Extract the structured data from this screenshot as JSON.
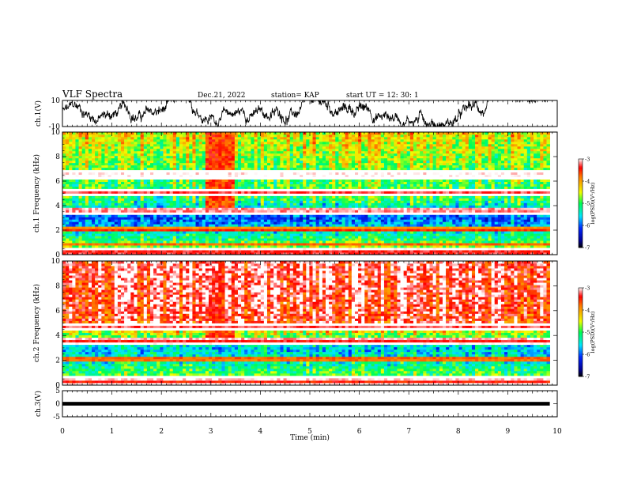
{
  "header": {
    "title": "VLF Spectra",
    "date": "Dec.21, 2022",
    "station": "station= KAP",
    "start": "start  UT =   12: 30: 1"
  },
  "chart_data": [
    {
      "type": "line",
      "panel": "ch1-waveform",
      "ylabel": "ch.1(V)",
      "ylim": [
        -10,
        10
      ],
      "yticks": [
        {
          "value": 10,
          "label": "10"
        },
        {
          "value": -10,
          "label": "-10"
        }
      ],
      "xlim": [
        0,
        10
      ],
      "x_end_data": 9.85,
      "series": [
        {
          "values_range": [
            -5,
            5
          ]
        }
      ]
    },
    {
      "type": "heatmap",
      "panel": "ch1-spectrogram",
      "ylabel": "ch.1 Frequency (kHz)",
      "ylim": [
        0,
        10
      ],
      "yticks": [
        "0",
        "2",
        "4",
        "6",
        "8",
        "10"
      ],
      "xlim": [
        0,
        10
      ],
      "x_end_data": 9.85,
      "colorbar": {
        "label": "log(PSD)(V²/Hz)",
        "range": [
          -7,
          -3
        ],
        "ticks": [
          "-3",
          "-4",
          "-5",
          "-6",
          "-7"
        ]
      },
      "bands": [
        {
          "f": 6.55,
          "w": 0.22,
          "c": -3.2
        },
        {
          "f": 5.1,
          "w": 0.2,
          "c": -3.3
        },
        {
          "f": 3.65,
          "w": 0.18,
          "c": -3.4
        },
        {
          "f": 2.2,
          "w": 0.12,
          "c": -4.0
        },
        {
          "f": 0.85,
          "w": 0.1,
          "c": -3.8
        },
        {
          "f": 0.2,
          "w": 0.25,
          "c": -3.6
        }
      ],
      "background_level": [
        {
          "f": 0,
          "c": -4.2
        },
        {
          "f": 1.5,
          "c": -5.2
        },
        {
          "f": 3.0,
          "c": -6.0
        },
        {
          "f": 4.5,
          "c": -5.0
        },
        {
          "f": 7.0,
          "c": -4.8
        },
        {
          "f": 10,
          "c": -4.3
        }
      ],
      "event": {
        "t_start": 2.9,
        "t_end": 3.5
      }
    },
    {
      "type": "heatmap",
      "panel": "ch2-spectrogram",
      "ylabel": "ch.2 Frequency (kHz)",
      "ylim": [
        0,
        10
      ],
      "yticks": [
        "0",
        "2",
        "4",
        "6",
        "8",
        "10"
      ],
      "xlim": [
        0,
        10
      ],
      "x_end_data": 9.85,
      "colorbar": {
        "label": "log(PSD)(V²/Hz)",
        "range": [
          -7,
          -3
        ],
        "ticks": [
          "-3",
          "-4",
          "-5",
          "-6",
          "-7"
        ]
      },
      "bands": [
        {
          "f": 4.7,
          "w": 0.15,
          "c": -3.3
        },
        {
          "f": 3.6,
          "w": 0.15,
          "c": -3.5
        },
        {
          "f": 2.1,
          "w": 0.12,
          "c": -4.0
        },
        {
          "f": 0.3,
          "w": 0.3,
          "c": -3.5
        }
      ],
      "background_level": [
        {
          "f": 0,
          "c": -4.5
        },
        {
          "f": 1.5,
          "c": -5.2
        },
        {
          "f": 3.0,
          "c": -5.6
        },
        {
          "f": 4.2,
          "c": -4.6
        },
        {
          "f": 5.0,
          "c": -3.4
        },
        {
          "f": 10,
          "c": -3.2
        }
      ],
      "event": {
        "t_start": 2.9,
        "t_end": 3.5
      }
    },
    {
      "type": "line",
      "panel": "ch3-waveform",
      "ylabel": "ch.3(V)",
      "ylim": [
        -5,
        5
      ],
      "yticks": [
        {
          "value": 5,
          "label": "5"
        },
        {
          "value": 0,
          "label": "0"
        },
        {
          "value": -5,
          "label": "-5"
        }
      ],
      "xlim": [
        0,
        10
      ],
      "x_end_data": 9.85,
      "series": [
        {
          "values_range": [
            -0.4,
            0.4
          ]
        }
      ]
    }
  ],
  "xaxis": {
    "label": "Time  (min)",
    "ticks": [
      "0",
      "1",
      "2",
      "3",
      "4",
      "5",
      "6",
      "7",
      "8",
      "9",
      "10"
    ]
  }
}
